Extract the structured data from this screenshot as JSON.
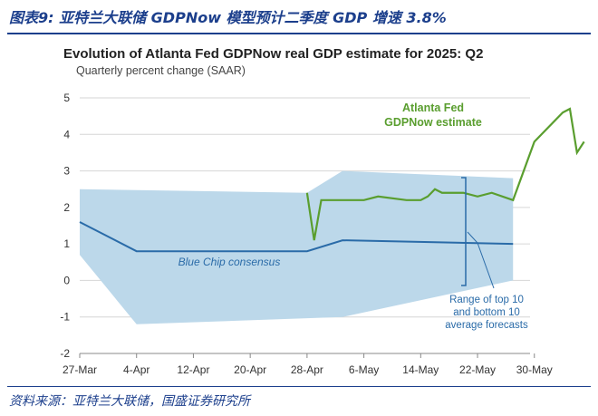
{
  "header": {
    "caption": "图表9:  亚特兰大联储 GDPNow 模型预计二季度 GDP 增速 3.8%"
  },
  "footer": {
    "source": "资料来源：亚特兰大联储，国盛证券研究所"
  },
  "colors": {
    "caption": "#1c3f8c",
    "band": "#bcd8ea",
    "bluechip_line": "#2a6ba8",
    "gdpnow_line": "#5a9e2f",
    "annotation_blue": "#2a6ba8"
  },
  "chart_data": {
    "type": "line",
    "title": "Evolution of Atlanta Fed GDPNow real GDP estimate for 2025: Q2",
    "subtitle": "Quarterly percent change (SAAR)",
    "xlabel": "",
    "ylabel": "",
    "x_ticks": [
      "27-Mar",
      "4-Apr",
      "12-Apr",
      "20-Apr",
      "28-Apr",
      "6-May",
      "14-May",
      "22-May",
      "30-May"
    ],
    "y_ticks": [
      "-2",
      "-1",
      "0",
      "1",
      "2",
      "3",
      "4",
      "5"
    ],
    "ylim": [
      -2,
      5
    ],
    "grid": "horizontal",
    "series": [
      {
        "name": "Blue Chip consensus",
        "kind": "line",
        "points": [
          [
            "27-Mar",
            1.6
          ],
          [
            "4-Apr",
            0.8
          ],
          [
            "28-Apr",
            0.8
          ],
          [
            "3-May",
            1.1
          ],
          [
            "27-May",
            1.0
          ]
        ]
      },
      {
        "name": "Range of top 10 and bottom 10 average forecasts",
        "kind": "band",
        "upper": [
          [
            "27-Mar",
            2.5
          ],
          [
            "28-Apr",
            2.4
          ],
          [
            "3-May",
            3.0
          ],
          [
            "27-May",
            2.8
          ]
        ],
        "lower": [
          [
            "27-Mar",
            0.7
          ],
          [
            "4-Apr",
            -1.2
          ],
          [
            "3-May",
            -1.0
          ],
          [
            "27-May",
            0.0
          ]
        ]
      },
      {
        "name": "Atlanta Fed GDPNow estimate",
        "kind": "line",
        "points": [
          [
            "28-Apr",
            2.4
          ],
          [
            "29-Apr",
            1.1
          ],
          [
            "30-Apr",
            2.2
          ],
          [
            "1-May",
            2.2
          ],
          [
            "2-May",
            2.2
          ],
          [
            "4-May",
            2.2
          ],
          [
            "6-May",
            2.2
          ],
          [
            "8-May",
            2.3
          ],
          [
            "12-May",
            2.2
          ],
          [
            "14-May",
            2.2
          ],
          [
            "15-May",
            2.3
          ],
          [
            "16-May",
            2.5
          ],
          [
            "17-May",
            2.4
          ],
          [
            "20-May",
            2.4
          ],
          [
            "22-May",
            2.3
          ],
          [
            "24-May",
            2.4
          ],
          [
            "27-May",
            2.2
          ],
          [
            "30-May",
            3.8
          ],
          [
            "3-Jun",
            4.6
          ],
          [
            "4-Jun",
            4.7
          ],
          [
            "5-Jun",
            3.5
          ],
          [
            "6-Jun",
            3.8
          ]
        ]
      }
    ],
    "annotations": {
      "bluechip_label": "Blue Chip consensus",
      "gdpnow_label_line1": "Atlanta Fed",
      "gdpnow_label_line2": "GDPNow estimate",
      "range_label_line1": "Range of top 10",
      "range_label_line2": "and bottom 10",
      "range_label_line3": "average forecasts"
    }
  }
}
